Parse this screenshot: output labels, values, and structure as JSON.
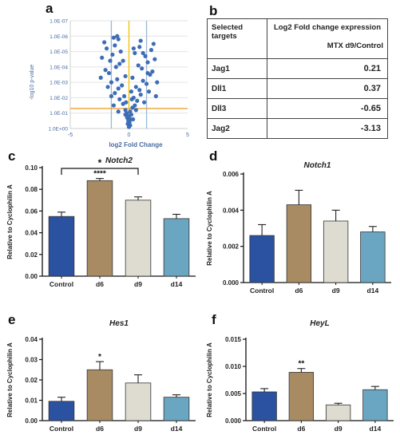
{
  "panel_labels": {
    "a": "a",
    "b": "b",
    "c": "c",
    "d": "d",
    "e": "e",
    "f": "f"
  },
  "table": {
    "header_col1": "Selected targets",
    "header_col2_line1": "Log2 Fold change expression",
    "header_col2_line2": "MTX d9/Control",
    "rows": [
      {
        "target": "Jag1",
        "value": "0.21"
      },
      {
        "target": "Dll1",
        "value": "0.37"
      },
      {
        "target": "Dll3",
        "value": "-0.65"
      },
      {
        "target": "Jag2",
        "value": "-3.13"
      }
    ]
  },
  "colors": {
    "control": "#2a52a1",
    "d6": "#a88b62",
    "d9": "#dedcd0",
    "d14": "#6aa6c1",
    "volcano_point": "#3d6db6",
    "volcano_vline_inner": "#f0c000",
    "volcano_vline_outer": "#9ab7d8",
    "volcano_hline": "#f0a030"
  },
  "chart_data": [
    {
      "id": "a",
      "type": "scatter",
      "xlabel": "log2 Fold Change",
      "ylabel": "-log10 p-value",
      "xlim": [
        -5,
        5
      ],
      "x_ticks": [
        "-5",
        "0",
        "5"
      ],
      "y_ticks": [
        "1.0E+00",
        "1.0E-01",
        "1.0E-02",
        "1.0E-03",
        "1.0E-04",
        "1.0E-05",
        "1.0E-06",
        "1.0E-07"
      ],
      "ylim": [
        0,
        7
      ],
      "vlines": [
        -1.5,
        0,
        1.5
      ],
      "hline": 1.3,
      "points": [
        [
          0,
          0.1
        ],
        [
          0.1,
          0.2
        ],
        [
          -0.1,
          0.3
        ],
        [
          0.05,
          0.4
        ],
        [
          -0.05,
          0.5
        ],
        [
          0.15,
          0.6
        ],
        [
          -0.15,
          0.7
        ],
        [
          0,
          0.8
        ],
        [
          0.2,
          0.9
        ],
        [
          -0.2,
          1.0
        ],
        [
          0.1,
          1.1
        ],
        [
          -0.3,
          1.2
        ],
        [
          0.3,
          1.35
        ],
        [
          0.5,
          1.5
        ],
        [
          -0.5,
          1.6
        ],
        [
          0.7,
          1.8
        ],
        [
          -0.8,
          1.9
        ],
        [
          0.4,
          2.0
        ],
        [
          -0.4,
          2.1
        ],
        [
          1.0,
          2.2
        ],
        [
          -1.2,
          2.3
        ],
        [
          0.2,
          2.4
        ],
        [
          0.9,
          2.5
        ],
        [
          -0.9,
          2.6
        ],
        [
          0.6,
          2.7
        ],
        [
          -0.6,
          2.8
        ],
        [
          1.5,
          2.9
        ],
        [
          -1.5,
          3.0
        ],
        [
          1.2,
          3.1
        ],
        [
          -1.0,
          3.2
        ],
        [
          0.3,
          3.3
        ],
        [
          -0.3,
          3.4
        ],
        [
          1.8,
          3.5
        ],
        [
          -1.7,
          3.6
        ],
        [
          2.0,
          3.7
        ],
        [
          -2.0,
          3.8
        ],
        [
          1.1,
          3.9
        ],
        [
          -1.1,
          4.0
        ],
        [
          0.8,
          4.1
        ],
        [
          -0.8,
          4.2
        ],
        [
          1.6,
          4.3
        ],
        [
          -1.6,
          4.4
        ],
        [
          2.2,
          4.5
        ],
        [
          -2.3,
          4.6
        ],
        [
          1.4,
          4.7
        ],
        [
          -1.4,
          4.8
        ],
        [
          0.5,
          4.9
        ],
        [
          -0.7,
          5.0
        ],
        [
          1.9,
          5.1
        ],
        [
          -1.9,
          5.2
        ],
        [
          0.9,
          5.3
        ],
        [
          -1.2,
          5.4
        ],
        [
          2.1,
          5.5
        ],
        [
          -2.1,
          5.6
        ],
        [
          1.0,
          5.7
        ],
        [
          -0.9,
          5.8
        ],
        [
          -1.3,
          5.9
        ],
        [
          -1.0,
          6.0
        ],
        [
          -1.5,
          2.1
        ],
        [
          2.4,
          3.0
        ],
        [
          1.3,
          1.7
        ],
        [
          -1.3,
          1.5
        ],
        [
          0.6,
          1.2
        ],
        [
          -0.9,
          1.1
        ],
        [
          1.7,
          2.4
        ],
        [
          -1.8,
          2.7
        ],
        [
          2.3,
          2.1
        ],
        [
          -2.4,
          3.3
        ],
        [
          1.6,
          3.6
        ],
        [
          0.4,
          5.2
        ],
        [
          -0.5,
          4.4
        ],
        [
          1.2,
          4.9
        ],
        [
          -0.3,
          0.9
        ],
        [
          0.35,
          0.6
        ],
        [
          -0.25,
          1.7
        ],
        [
          0.25,
          1.9
        ]
      ]
    },
    {
      "id": "c",
      "type": "bar",
      "title": "Notch2",
      "ylabel": "Relative to Cyclophilin A",
      "categories": [
        "Control",
        "d6",
        "d9",
        "d14"
      ],
      "values": [
        0.055,
        0.088,
        0.07,
        0.053
      ],
      "errors": [
        0.004,
        0.002,
        0.003,
        0.004
      ],
      "ylim": [
        0,
        0.1
      ],
      "y_ticks": [
        "0.00",
        "0.02",
        "0.04",
        "0.06",
        "0.08",
        "0.10"
      ],
      "annotations": [
        {
          "bar": "d6",
          "text": "****"
        }
      ],
      "bracket": {
        "from": "Control",
        "to": "d9",
        "text": "*"
      }
    },
    {
      "id": "d",
      "type": "bar",
      "title": "Notch1",
      "ylabel": "Relative to Cyclophilin A",
      "categories": [
        "Control",
        "d6",
        "d9",
        "d14"
      ],
      "values": [
        0.0026,
        0.0043,
        0.0034,
        0.0028
      ],
      "errors": [
        0.0006,
        0.0008,
        0.0006,
        0.0003
      ],
      "ylim": [
        0,
        0.006
      ],
      "y_ticks": [
        "0.000",
        "0.002",
        "0.004",
        "0.006"
      ],
      "annotations": []
    },
    {
      "id": "e",
      "type": "bar",
      "title": "Hes1",
      "ylabel": "Relative to Cyclophilin A",
      "categories": [
        "Control",
        "d6",
        "d9",
        "d14"
      ],
      "values": [
        0.0095,
        0.025,
        0.0185,
        0.0115
      ],
      "errors": [
        0.002,
        0.004,
        0.004,
        0.0012
      ],
      "ylim": [
        0,
        0.04
      ],
      "y_ticks": [
        "0.00",
        "0.01",
        "0.02",
        "0.03",
        "0.04"
      ],
      "annotations": [
        {
          "bar": "d6",
          "text": "*"
        }
      ]
    },
    {
      "id": "f",
      "type": "bar",
      "title": "HeyL",
      "ylabel": "Relative to Cyclophilin A",
      "categories": [
        "Control",
        "d6",
        "d9",
        "d14"
      ],
      "values": [
        0.0053,
        0.0089,
        0.0029,
        0.0057
      ],
      "errors": [
        0.0006,
        0.0007,
        0.0003,
        0.0006
      ],
      "ylim": [
        0,
        0.015
      ],
      "y_ticks": [
        "0.000",
        "0.005",
        "0.010",
        "0.015"
      ],
      "annotations": [
        {
          "bar": "d6",
          "text": "**"
        }
      ]
    }
  ]
}
